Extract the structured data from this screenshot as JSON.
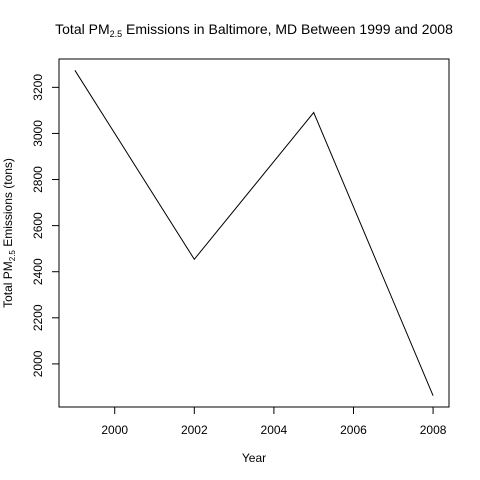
{
  "chart_data": {
    "type": "line",
    "title": {
      "prefix": "Total PM",
      "subscript": "2.5",
      "suffix": " Emissions in Baltimore, MD Between 1999 and 2008"
    },
    "xlabel": "Year",
    "ylabel": {
      "prefix": "Total PM",
      "subscript": "2.5",
      "suffix": " Emissions (tons)"
    },
    "x": [
      1999,
      2002,
      2005,
      2008
    ],
    "y": [
      3274,
      2454,
      3091,
      1862
    ],
    "xlim": [
      1998.6,
      2008.4
    ],
    "ylim": [
      1813,
      3323
    ],
    "xticks": [
      2000,
      2002,
      2004,
      2006,
      2008
    ],
    "yticks": [
      2000,
      2200,
      2400,
      2600,
      2800,
      3000,
      3200
    ],
    "grid": false,
    "legend": "none",
    "line_color": "#000000"
  }
}
